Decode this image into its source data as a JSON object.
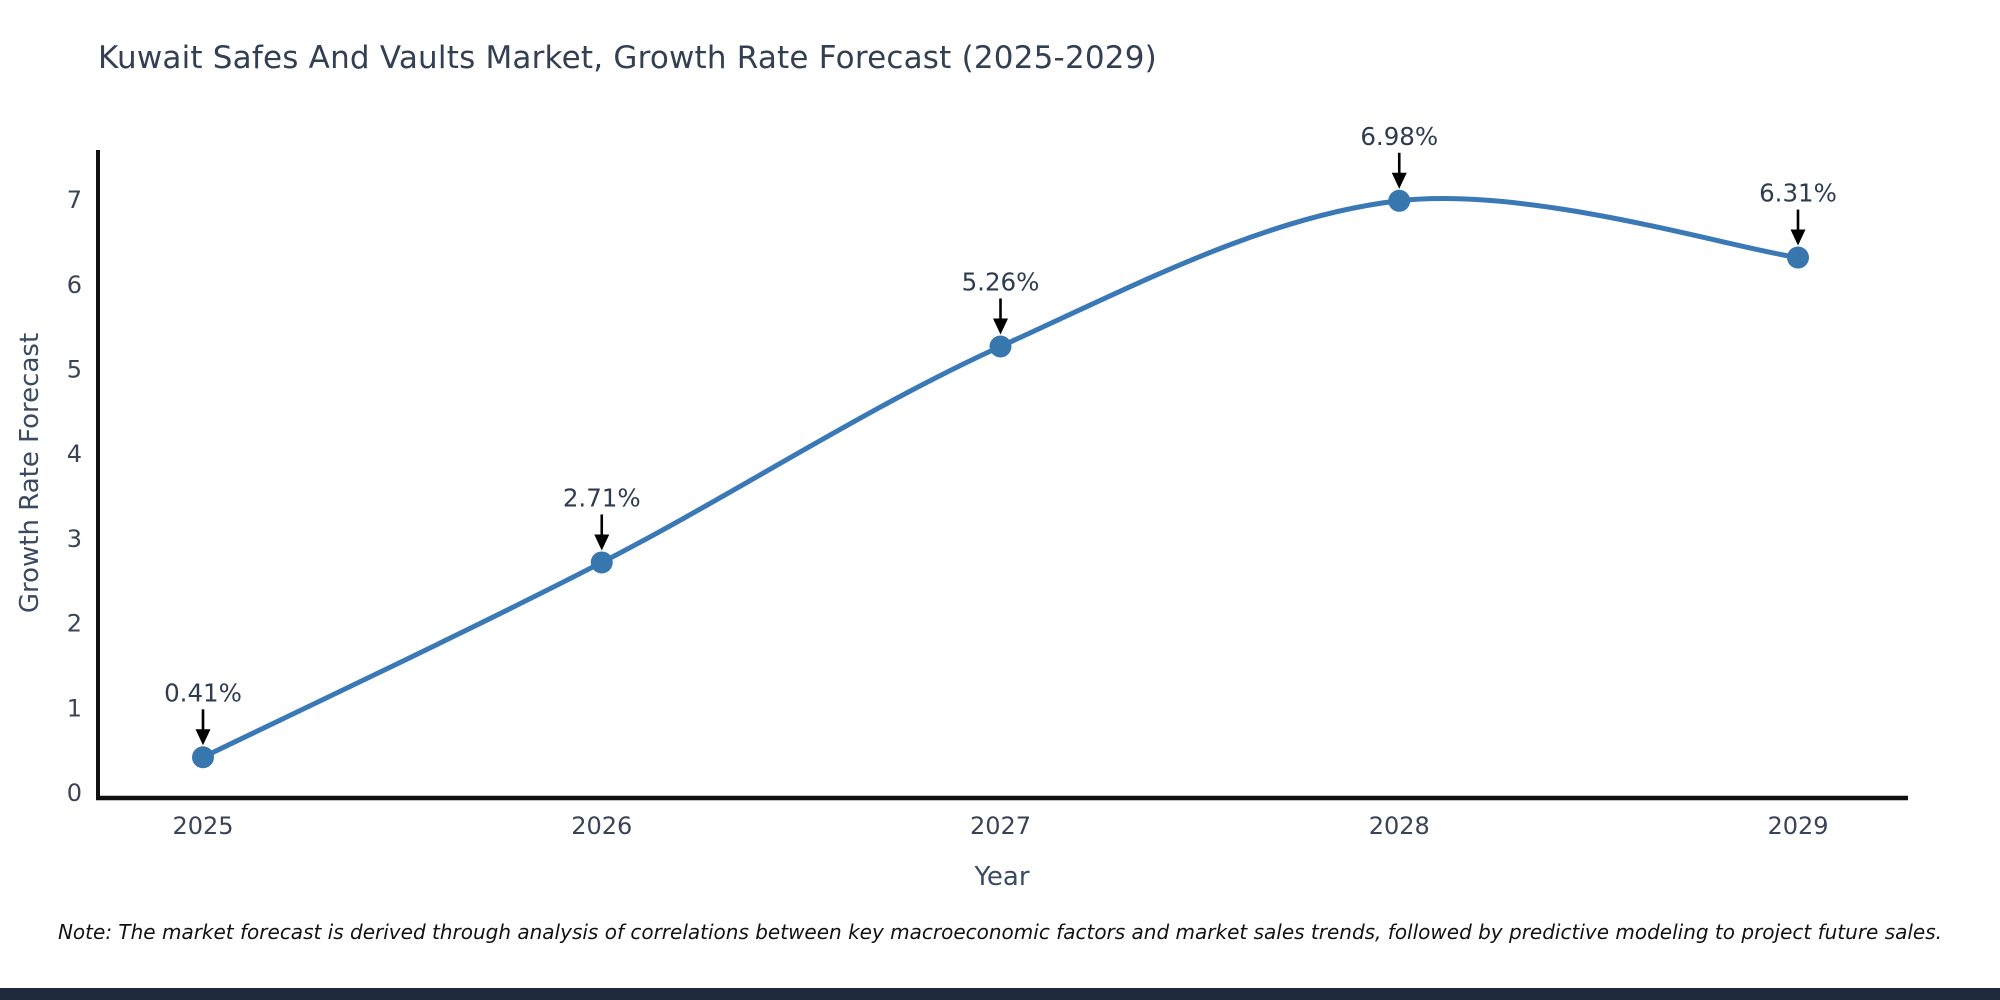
{
  "title": "Kuwait Safes And Vaults Market, Growth Rate Forecast (2025-2029)",
  "note": "Note: The market forecast is derived through analysis of correlations between key macroeconomic factors and market sales trends, followed by predictive modeling to project future sales.",
  "chart_data": {
    "type": "line",
    "title": "Kuwait Safes And Vaults Market, Growth Rate Forecast (2025-2029)",
    "xlabel": "Year",
    "ylabel": "Growth Rate Forecast",
    "categories": [
      "2025",
      "2026",
      "2027",
      "2028",
      "2029"
    ],
    "series": [
      {
        "name": "Growth Rate Forecast",
        "values": [
          0.41,
          2.71,
          5.26,
          6.98,
          6.31
        ],
        "point_labels": [
          "0.41%",
          "2.71%",
          "5.26%",
          "6.98%",
          "6.31%"
        ]
      }
    ],
    "yticks": [
      0,
      1,
      2,
      3,
      4,
      5,
      6,
      7
    ],
    "ylim": [
      0,
      7.6
    ],
    "grid": false,
    "legend_position": "none",
    "smooth_line": true,
    "annotations_with_arrows": true
  },
  "colors": {
    "line": "#3a79b5",
    "marker": "#3876ae",
    "axis_spine": "#111111",
    "tick_label": "#3a4457",
    "annotation_text": "#2e3b50",
    "arrow": "#000000",
    "title": "#333f52",
    "axis_title": "#3a4a63",
    "note": "#121212",
    "bottom_bar": "#1f2b3d",
    "background": "#ffffff"
  }
}
